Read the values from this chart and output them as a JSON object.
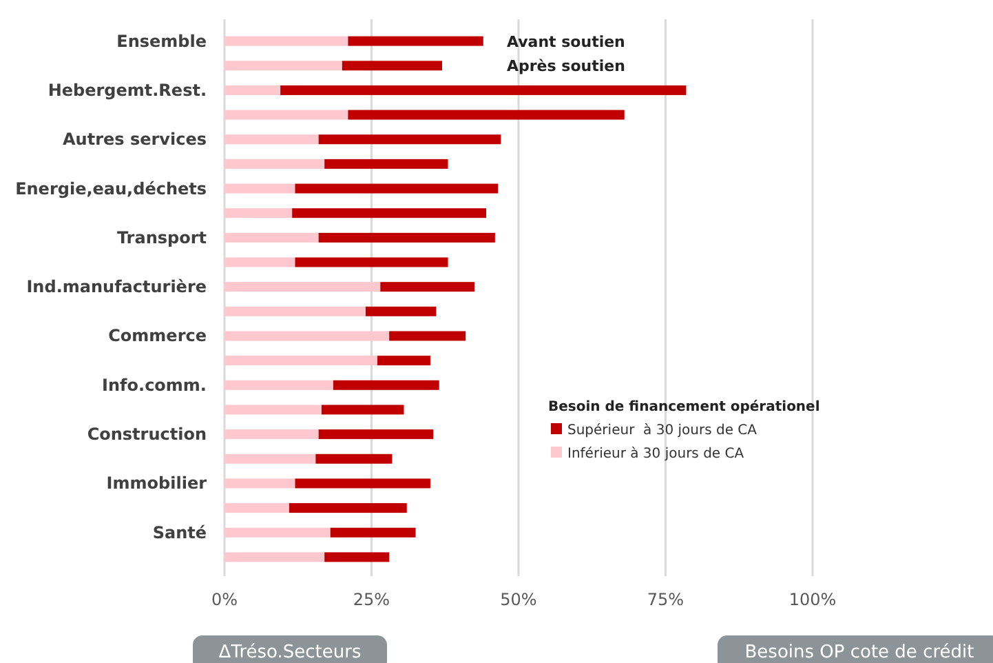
{
  "chart_data": {
    "type": "bar",
    "orientation": "horizontal",
    "stacked": true,
    "categories": [
      "Ensemble",
      null,
      "Hebergemt.Rest.",
      null,
      "Autres services",
      null,
      "Energie,eau,déchets",
      null,
      "Transport",
      null,
      "Ind.manufacturière",
      null,
      "Commerce",
      null,
      "Info.comm.",
      null,
      "Construction",
      null,
      "Immobilier",
      null,
      "Santé",
      null
    ],
    "series": [
      {
        "name": "Inférieur à 30 jours de CA",
        "color": "#ffc7ce",
        "values": [
          21,
          20,
          9.5,
          21,
          16,
          17,
          12,
          11.5,
          16,
          12,
          26.5,
          24,
          28,
          26,
          18.5,
          16.5,
          16,
          15.5,
          12,
          11,
          18,
          17
        ]
      },
      {
        "name": "Supérieur  à 30 jours de CA",
        "color": "#c00000",
        "values": [
          23,
          17,
          69,
          47,
          31,
          21,
          34.5,
          33,
          30,
          26,
          16,
          12,
          13,
          9,
          18,
          14,
          19.5,
          13,
          23,
          20,
          14.5,
          11
        ]
      }
    ],
    "xlim": [
      0,
      100
    ],
    "xticks": [
      {
        "value": 0,
        "label": "0%"
      },
      {
        "value": 25,
        "label": "25%"
      },
      {
        "value": 50,
        "label": "50%"
      },
      {
        "value": 75,
        "label": "75%"
      },
      {
        "value": 100,
        "label": "100%"
      }
    ],
    "grid": "x",
    "legend": "right",
    "legend_title": "Besoin de financement opérationel",
    "annotations": [
      "Avant soutien",
      "Après soutien",
      "ΔTréso.Secteurs",
      "Besoins OP cote de crédit"
    ]
  }
}
